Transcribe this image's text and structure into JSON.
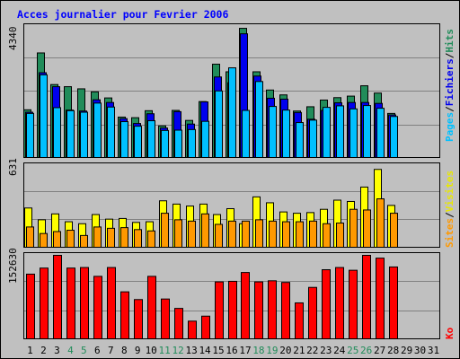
{
  "chart_data": {
    "type": "bar",
    "title": "Acces journalier pour Fevrier 2006",
    "x": [
      "1",
      "2",
      "3",
      "4",
      "5",
      "6",
      "7",
      "8",
      "9",
      "10",
      "11",
      "12",
      "13",
      "14",
      "15",
      "16",
      "17",
      "18",
      "19",
      "20",
      "21",
      "22",
      "23",
      "24",
      "25",
      "26",
      "27",
      "28",
      "29",
      "30",
      "31"
    ],
    "weekend_days": [
      "4",
      "5",
      "11",
      "12",
      "18",
      "19",
      "25",
      "26"
    ],
    "top": {
      "ymax_label": "4340",
      "ymax": 4340,
      "axis_label_parts": [
        "Pages",
        "/",
        "Fichiers",
        "/",
        "Hits"
      ],
      "series": [
        {
          "name": "Hits",
          "color": "#218c5a",
          "values": [
            1570,
            3440,
            2400,
            2330,
            2260,
            2160,
            1960,
            1330,
            1310,
            1540,
            1040,
            1550,
            1220,
            1840,
            3070,
            2820,
            4250,
            2820,
            2220,
            2060,
            1530,
            1670,
            1890,
            1970,
            2020,
            2360,
            2120,
            1450,
            null,
            null,
            null
          ]
        },
        {
          "name": "Fichiers",
          "color": "#0000ee",
          "values": [
            1490,
            2790,
            2330,
            1560,
            1530,
            1900,
            1810,
            1280,
            1120,
            1440,
            970,
            1510,
            1100,
            1830,
            2650,
            2460,
            4070,
            2680,
            1950,
            1920,
            1480,
            1260,
            1550,
            1800,
            1810,
            1810,
            1780,
            1400,
            null,
            null,
            null
          ]
        },
        {
          "name": "Pages",
          "color": "#00c0ff",
          "values": [
            1450,
            2720,
            1640,
            1540,
            1490,
            1790,
            1660,
            1180,
            1030,
            1210,
            890,
            900,
            920,
            1190,
            2190,
            2950,
            1550,
            2500,
            1680,
            1560,
            1150,
            1230,
            1650,
            1700,
            1600,
            1710,
            1620,
            1350,
            null,
            null,
            null
          ]
        }
      ]
    },
    "middle": {
      "ymax_label": "631",
      "ymax": 631,
      "axis_label_parts": [
        "Sites",
        "/",
        "Visites"
      ],
      "series": [
        {
          "name": "Visites",
          "color": "#ffff00",
          "values": [
            300,
            210,
            255,
            195,
            180,
            250,
            215,
            220,
            190,
            195,
            355,
            330,
            315,
            330,
            250,
            295,
            180,
            385,
            340,
            270,
            260,
            265,
            290,
            360,
            350,
            460,
            595,
            320,
            null,
            null,
            null
          ]
        },
        {
          "name": "Sites",
          "color": "#ff9900",
          "values": [
            155,
            105,
            120,
            130,
            90,
            155,
            145,
            150,
            135,
            125,
            260,
            210,
            200,
            255,
            175,
            200,
            200,
            210,
            200,
            195,
            195,
            200,
            180,
            185,
            290,
            285,
            370,
            260,
            null,
            null,
            null
          ]
        }
      ]
    },
    "bottom": {
      "ymax_label": "152630",
      "ymax": 152630,
      "axis_label": "Ko",
      "series": [
        {
          "name": "Ko",
          "color": "#ff0000",
          "values": [
            117000,
            128000,
            151000,
            128000,
            129000,
            113000,
            129000,
            85000,
            71000,
            113000,
            72000,
            55000,
            32000,
            41000,
            103000,
            104000,
            120000,
            103000,
            105000,
            102000,
            65000,
            93000,
            125000,
            129000,
            124000,
            151000,
            146000,
            130000,
            null,
            null,
            null
          ]
        }
      ]
    }
  }
}
